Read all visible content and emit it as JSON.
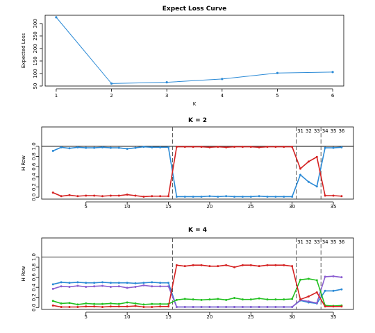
{
  "colors": {
    "blue": "#2b8ad6",
    "red": "#d42020",
    "green": "#22c020",
    "purple": "#8a5cd0",
    "axis": "#000000",
    "dash": "#555555"
  },
  "chart_data": [
    {
      "type": "line",
      "title": "Expect Loss Curve",
      "xlabel": "K",
      "ylabel": "Expected Loss",
      "xlim": [
        1,
        6
      ],
      "ylim": [
        50,
        330
      ],
      "x_ticks": [
        "1",
        "2",
        "3",
        "4",
        "5",
        "6"
      ],
      "y_ticks": [
        "50",
        "100",
        "150",
        "200",
        "250",
        "300"
      ],
      "x": [
        1,
        2,
        3,
        4,
        5,
        6
      ],
      "series": [
        {
          "color": "blue",
          "values": [
            325,
            60,
            65,
            78,
            102,
            106
          ]
        }
      ]
    },
    {
      "type": "line",
      "title": "K = 2",
      "xlabel": "",
      "ylabel": "H Row",
      "xlim": [
        1,
        36
      ],
      "ylim": [
        0,
        1
      ],
      "x_ticks": [
        "5",
        "10",
        "15",
        "20",
        "25",
        "30",
        "35"
      ],
      "y_ticks": [
        "0.0",
        "0.2",
        "0.4",
        "0.6",
        "0.8",
        "1.0"
      ],
      "top_labels": [
        "31",
        "32",
        "33",
        "34",
        "35",
        "36"
      ],
      "cluster_breaks": [
        15.5,
        30.5,
        33.5
      ],
      "reference_line": 1.0,
      "series": [
        {
          "color": "blue",
          "values": [
            0.91,
            0.98,
            0.96,
            0.98,
            0.97,
            0.97,
            0.98,
            0.97,
            0.97,
            0.95,
            0.97,
            0.99,
            0.98,
            0.98,
            0.98,
            0.01,
            0.01,
            0.01,
            0.01,
            0.02,
            0.01,
            0.02,
            0.01,
            0.01,
            0.01,
            0.02,
            0.01,
            0.01,
            0.01,
            0.01,
            0.44,
            0.3,
            0.21,
            0.97,
            0.97,
            0.98
          ]
        },
        {
          "color": "red",
          "values": [
            0.09,
            0.02,
            0.04,
            0.02,
            0.03,
            0.03,
            0.02,
            0.03,
            0.03,
            0.05,
            0.03,
            0.01,
            0.02,
            0.02,
            0.02,
            0.99,
            0.99,
            0.99,
            0.99,
            0.98,
            0.99,
            0.98,
            0.99,
            0.99,
            0.99,
            0.98,
            0.99,
            0.99,
            0.99,
            0.99,
            0.56,
            0.7,
            0.79,
            0.03,
            0.03,
            0.02
          ]
        }
      ]
    },
    {
      "type": "line",
      "title": "K = 4",
      "xlabel": "",
      "ylabel": "H Row",
      "xlim": [
        1,
        36
      ],
      "ylim": [
        0,
        1
      ],
      "x_ticks": [
        "5",
        "10",
        "15",
        "20",
        "25",
        "30",
        "35"
      ],
      "y_ticks": [
        "0.0",
        "0.2",
        "0.4",
        "0.6",
        "0.8",
        "1.0"
      ],
      "top_labels": [
        "31",
        "32",
        "33",
        "34",
        "35",
        "36"
      ],
      "cluster_breaks": [
        15.5,
        30.5,
        33.5
      ],
      "reference_line": 1.0,
      "series": [
        {
          "color": "blue",
          "values": [
            0.46,
            0.5,
            0.49,
            0.5,
            0.49,
            0.49,
            0.5,
            0.49,
            0.49,
            0.49,
            0.48,
            0.49,
            0.5,
            0.49,
            0.49,
            0.01,
            0.01,
            0.01,
            0.01,
            0.01,
            0.01,
            0.01,
            0.01,
            0.01,
            0.01,
            0.01,
            0.01,
            0.01,
            0.01,
            0.01,
            0.14,
            0.1,
            0.08,
            0.33,
            0.33,
            0.36
          ]
        },
        {
          "color": "purple",
          "values": [
            0.37,
            0.42,
            0.41,
            0.43,
            0.41,
            0.42,
            0.43,
            0.41,
            0.42,
            0.39,
            0.41,
            0.44,
            0.42,
            0.42,
            0.42,
            0.01,
            0.01,
            0.01,
            0.01,
            0.01,
            0.01,
            0.01,
            0.01,
            0.01,
            0.01,
            0.01,
            0.01,
            0.01,
            0.01,
            0.01,
            0.15,
            0.12,
            0.09,
            0.61,
            0.62,
            0.6
          ]
        },
        {
          "color": "green",
          "values": [
            0.13,
            0.08,
            0.09,
            0.06,
            0.08,
            0.07,
            0.07,
            0.08,
            0.07,
            0.1,
            0.08,
            0.06,
            0.07,
            0.07,
            0.07,
            0.15,
            0.17,
            0.16,
            0.15,
            0.16,
            0.17,
            0.15,
            0.19,
            0.16,
            0.16,
            0.18,
            0.16,
            0.16,
            0.16,
            0.17,
            0.55,
            0.57,
            0.54,
            0.04,
            0.03,
            0.04
          ]
        },
        {
          "color": "red",
          "values": [
            0.04,
            0.01,
            0.01,
            0.01,
            0.02,
            0.02,
            0.01,
            0.02,
            0.02,
            0.02,
            0.03,
            0.01,
            0.01,
            0.02,
            0.02,
            0.84,
            0.82,
            0.84,
            0.84,
            0.82,
            0.82,
            0.84,
            0.8,
            0.84,
            0.84,
            0.82,
            0.84,
            0.84,
            0.84,
            0.82,
            0.16,
            0.22,
            0.3,
            0.02,
            0.02,
            0.02
          ]
        }
      ]
    }
  ]
}
